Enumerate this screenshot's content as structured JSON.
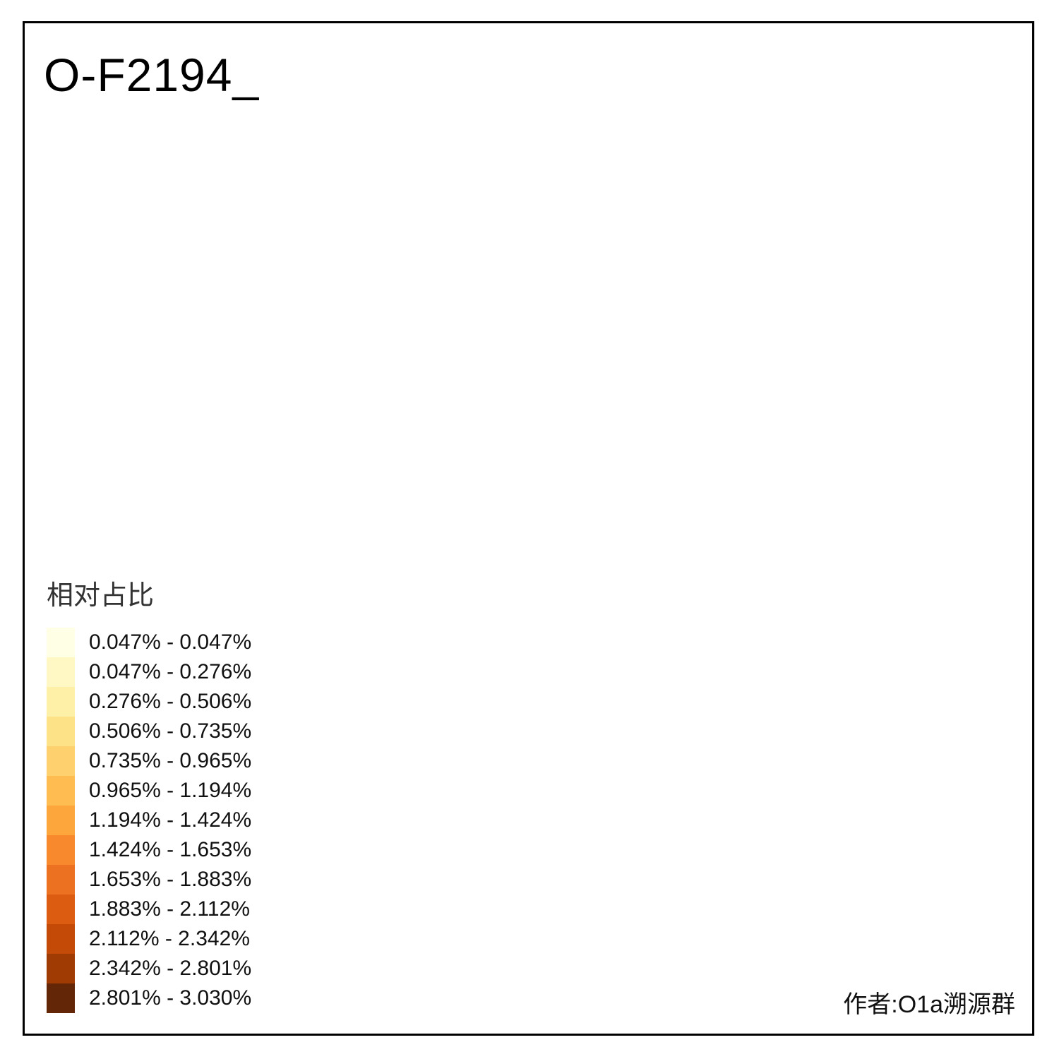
{
  "title": "O-F2194_",
  "author": "作者:O1a溯源群",
  "legend": {
    "title": "相对占比",
    "items": [
      {
        "label": "0.047% - 0.047%",
        "color": "#FFFFE5"
      },
      {
        "label": "0.047% - 0.276%",
        "color": "#FFF8C5"
      },
      {
        "label": "0.276% - 0.506%",
        "color": "#FEF0A6"
      },
      {
        "label": "0.506% - 0.735%",
        "color": "#FEE288"
      },
      {
        "label": "0.735% - 0.965%",
        "color": "#FED16E"
      },
      {
        "label": "0.965% - 1.194%",
        "color": "#FEBC51"
      },
      {
        "label": "1.194% - 1.424%",
        "color": "#FDA63C"
      },
      {
        "label": "1.424% - 1.653%",
        "color": "#F8892D"
      },
      {
        "label": "1.653% - 1.883%",
        "color": "#EC7120"
      },
      {
        "label": "1.883% - 2.112%",
        "color": "#DC5C11"
      },
      {
        "label": "2.112% - 2.342%",
        "color": "#C44A08"
      },
      {
        "label": "2.342% - 2.801%",
        "color": "#A03B04"
      },
      {
        "label": "2.801% - 3.030%",
        "color": "#632606"
      }
    ]
  },
  "map": {
    "base_fill": "#D3D3D3",
    "border_color": "#6E6E6E",
    "water_fill": "#FFFFFF",
    "highlights": [
      {
        "color": "#FCF0BC"
      },
      {
        "color": "#FCF0BC"
      },
      {
        "color": "#FAE49A"
      },
      {
        "color": "#FCF0BC"
      },
      {
        "color": "#FCF1C2"
      },
      {
        "color": "#FBEDB3"
      },
      {
        "color": "#5D2106"
      },
      {
        "color": "#FFFDE6"
      },
      {
        "color": "#FCF1C2"
      }
    ]
  }
}
